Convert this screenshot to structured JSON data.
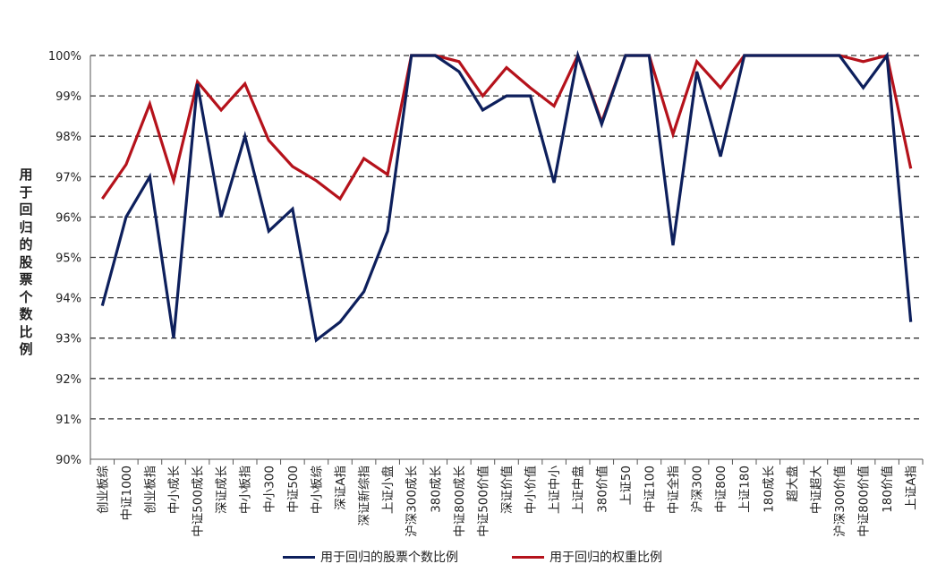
{
  "chart_data": {
    "type": "line",
    "title": "",
    "xlabel": "",
    "ylabel": "用于回归的股票个数比例",
    "ylim": [
      90,
      100
    ],
    "yticks": [
      "90%",
      "91%",
      "92%",
      "93%",
      "94%",
      "95%",
      "96%",
      "97%",
      "98%",
      "99%",
      "100%"
    ],
    "grid": true,
    "legend": "bottom",
    "categories": [
      "创业板综",
      "中证1000",
      "创业板指",
      "中小成长",
      "中证500成长",
      "深证成长",
      "中小板指",
      "中小300",
      "中证500",
      "中小板综",
      "深证A指",
      "深证新综指",
      "上证小盘",
      "沪深300成长",
      "380成长",
      "中证800成长",
      "中证500价值",
      "深证价值",
      "中小价值",
      "上证中小",
      "上证中盘",
      "380价值",
      "上证50",
      "中证100",
      "中证全指",
      "沪深300",
      "中证800",
      "上证180",
      "180成长",
      "超大盘",
      "中证超大",
      "沪深300价值",
      "中证800价值",
      "180价值",
      "上证A指"
    ],
    "series": [
      {
        "name": "用于回归的股票个数比例",
        "color": "#0d1f5c",
        "values": [
          93.8,
          96.0,
          97.0,
          93.0,
          99.3,
          96.0,
          98.0,
          95.65,
          96.2,
          92.95,
          93.4,
          94.15,
          95.65,
          100,
          100,
          99.6,
          98.65,
          99.0,
          99.0,
          96.85,
          100,
          98.3,
          100,
          100,
          95.3,
          99.6,
          97.5,
          100,
          100,
          100,
          100,
          100,
          99.2,
          100,
          93.4
        ]
      },
      {
        "name": "用于回归的权重比例",
        "color": "#b5121b",
        "values": [
          96.45,
          97.3,
          98.8,
          96.9,
          99.35,
          98.65,
          99.3,
          97.9,
          97.25,
          96.9,
          96.45,
          97.45,
          97.05,
          100,
          100,
          99.85,
          99.0,
          99.7,
          99.2,
          98.75,
          100,
          98.35,
          100,
          100,
          98.05,
          99.85,
          99.2,
          100,
          100,
          100,
          100,
          100,
          99.85,
          100,
          97.2
        ]
      }
    ]
  }
}
